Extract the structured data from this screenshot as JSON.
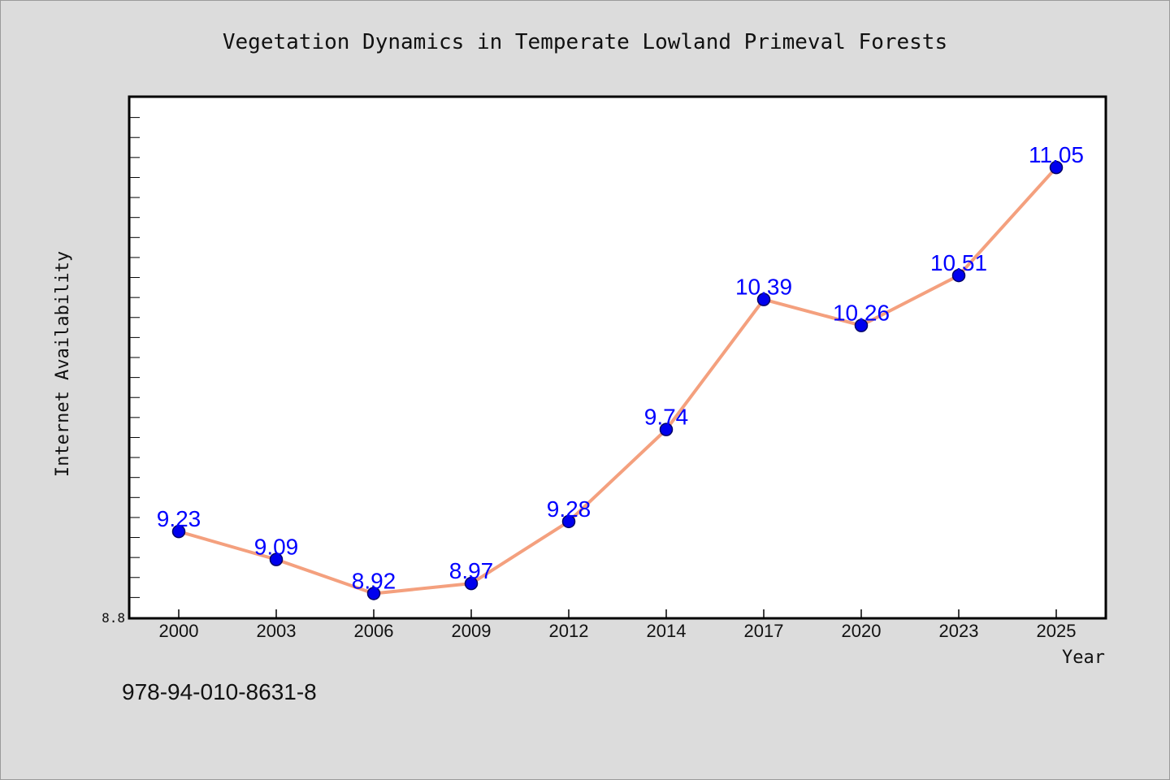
{
  "colors": {
    "background": "#dcdcdc",
    "plot_background": "#ffffff",
    "line": "#f4a07e",
    "marker": "#0000ee",
    "marker_edge": "#000066",
    "data_label": "#0000ff",
    "axis": "#000000",
    "text": "#111111"
  },
  "footer": {
    "isbn": "978-94-010-8631-8"
  },
  "chart_data": {
    "type": "line",
    "title": "Vegetation Dynamics in Temperate Lowland Primeval Forests",
    "xlabel": "Year",
    "ylabel": "Internet Availability",
    "categories": [
      "2000",
      "2003",
      "2006",
      "2009",
      "2012",
      "2014",
      "2017",
      "2020",
      "2023",
      "2025"
    ],
    "series": [
      {
        "values": [
          9.23,
          9.09,
          8.92,
          8.97,
          9.28,
          9.74,
          10.39,
          10.26,
          10.51,
          11.05
        ],
        "labels": [
          "9.23",
          "9.09",
          "8.92",
          "8.97",
          "9.28",
          "9.74",
          "10.39",
          "10.26",
          "10.51",
          "11.05"
        ]
      }
    ],
    "ylim": [
      8.8,
      11.4
    ],
    "y_tick_labels": [
      "8.8"
    ],
    "y_minor_tick_step": 0.1,
    "grid": false,
    "legend": "none"
  }
}
